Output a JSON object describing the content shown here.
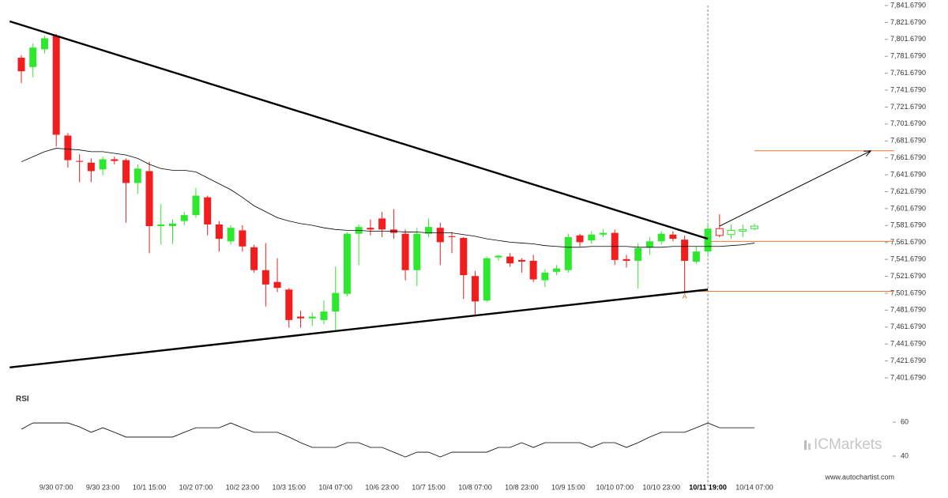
{
  "chart_data": {
    "type": "candlestick",
    "categories": [
      null,
      null,
      null,
      "9/30 07:00",
      null,
      null,
      null,
      "9/30 23:00",
      null,
      null,
      null,
      "10/1 15:00",
      null,
      null,
      null,
      "10/2 07:00",
      null,
      null,
      null,
      "10/2 23:00",
      null,
      null,
      null,
      "10/3 15:00",
      null,
      null,
      null,
      "10/4 07:00",
      null,
      null,
      null,
      "10/6 23:00",
      null,
      null,
      null,
      "10/7 15:00",
      null,
      null,
      null,
      "10/8 07:00",
      null,
      null,
      null,
      "10/8 23:00",
      null,
      null,
      null,
      "10/9 15:00",
      null,
      null,
      null,
      "10/10 07:00",
      null,
      null,
      null,
      "10/10 23:00",
      null,
      null,
      null,
      "10/11 19:00",
      null,
      null,
      null,
      "10/14 07:00"
    ],
    "open": [
      7780,
      7769,
      7790,
      7806,
      7688,
      7658,
      7656,
      7648,
      7660,
      7659,
      7632,
      7646,
      7581,
      7581,
      7587,
      7594,
      7615,
      7583,
      7563,
      7576,
      7556,
      7529,
      7515,
      7506,
      7474,
      7472,
      7470,
      7480,
      7501,
      7572,
      7579,
      7590,
      7577,
      7572,
      7529,
      7572,
      7579,
      7569,
      7567,
      7522,
      7493,
      7544,
      7545,
      7541,
      7540,
      7517,
      7527,
      7529,
      7570,
      7564,
      7571,
      7573,
      7542,
      7540,
      7556,
      7563,
      7571,
      7565,
      7539,
      7551,
      7578,
      7571,
      7575,
      7578
    ],
    "high": [
      7783,
      7797,
      7806,
      7808,
      7691,
      7666,
      7661,
      7663,
      7663,
      7661,
      7654,
      7657,
      7607,
      7589,
      7598,
      7626,
      7617,
      7587,
      7582,
      7582,
      7559,
      7561,
      7543,
      7508,
      7481,
      7479,
      7493,
      7533,
      7574,
      7583,
      7589,
      7598,
      7601,
      7577,
      7579,
      7590,
      7585,
      7574,
      7568,
      7528,
      7545,
      7547,
      7549,
      7543,
      7547,
      7530,
      7535,
      7572,
      7572,
      7575,
      7577,
      7577,
      7547,
      7561,
      7568,
      7575,
      7575,
      7570,
      7557,
      7583,
      7595,
      7583,
      7583,
      7584
    ],
    "low": [
      7750,
      7757,
      7785,
      7675,
      7650,
      7633,
      7633,
      7641,
      7654,
      7585,
      7619,
      7549,
      7559,
      7560,
      7582,
      7591,
      7570,
      7551,
      7559,
      7551,
      7526,
      7486,
      7503,
      7461,
      7461,
      7463,
      7465,
      7458,
      7498,
      7535,
      7570,
      7568,
      7566,
      7517,
      7510,
      7568,
      7535,
      7549,
      7495,
      7476,
      7491,
      7540,
      7533,
      7526,
      7515,
      7509,
      7523,
      7526,
      7557,
      7560,
      7568,
      7535,
      7532,
      7507,
      7547,
      7559,
      7563,
      7504,
      7536,
      7547,
      7568,
      7566,
      7568,
      7576
    ],
    "close": [
      7764,
      7792,
      7803,
      7689,
      7659,
      7657,
      7646,
      7660,
      7658,
      7632,
      7649,
      7581,
      7583,
      7584,
      7594,
      7617,
      7583,
      7566,
      7579,
      7557,
      7529,
      7512,
      7508,
      7470,
      7472,
      7474,
      7480,
      7502,
      7572,
      7580,
      7577,
      7577,
      7573,
      7529,
      7572,
      7580,
      7562,
      7568,
      7523,
      7492,
      7543,
      7546,
      7537,
      7539,
      7518,
      7526,
      7531,
      7568,
      7562,
      7571,
      7573,
      7541,
      7540,
      7555,
      7563,
      7572,
      7566,
      7540,
      7551,
      7578,
      7570,
      7576,
      7577,
      7581
    ],
    "up_color": "#2ee82e",
    "down_color": "#f21d1d",
    "hollow_from_index": 60,
    "moving_average": {
      "color": "#000000",
      "values": [
        7657,
        7663,
        7669,
        7673,
        7672,
        7671,
        7669,
        7669,
        7667,
        7665,
        7661,
        7654,
        7649,
        7647,
        7647,
        7645,
        7638,
        7631,
        7624,
        7615,
        7605,
        7598,
        7591,
        7587,
        7584,
        7582,
        7579,
        7577,
        7576,
        7576,
        7575,
        7575,
        7575,
        7574,
        7574,
        7573,
        7573,
        7573,
        7571,
        7569,
        7566,
        7564,
        7562,
        7561,
        7560,
        7558,
        7557,
        7556,
        7556,
        7557,
        7557,
        7557,
        7557,
        7556,
        7556,
        7556,
        7557,
        7557,
        7557,
        7557,
        7557,
        7558,
        7559,
        7561
      ]
    },
    "trendlines": [
      {
        "x": [
          -1,
          59
        ],
        "y": [
          7823,
          7566
        ]
      },
      {
        "x": [
          -1,
          59
        ],
        "y": [
          7414,
          7506
        ]
      }
    ],
    "levels": [
      {
        "value": 7670,
        "from": 63,
        "to": 75
      },
      {
        "value": 7563,
        "from": 59,
        "to": 75
      },
      {
        "value": 7504,
        "from": 57,
        "to": 75
      }
    ],
    "level_color": "#e8773a",
    "arrow": {
      "x": [
        60,
        73
      ],
      "y": [
        7581,
        7670
      ]
    },
    "annotation": {
      "text": "A",
      "x": 57,
      "y": 7504
    },
    "marker_line_index": 59,
    "ylim": [
      7401.679,
      7841.679
    ],
    "yticks": [
      {
        "value": 7401.679,
        "label": "7,401.6790"
      },
      {
        "value": 7421.679,
        "label": "7,421.6790"
      },
      {
        "value": 7441.679,
        "label": "7,441.6790"
      },
      {
        "value": 7461.679,
        "label": "7,461.6790"
      },
      {
        "value": 7481.679,
        "label": "7,481.6790"
      },
      {
        "value": 7501.679,
        "label": "7,501.6790"
      },
      {
        "value": 7521.679,
        "label": "7,521.6790"
      },
      {
        "value": 7541.679,
        "label": "7,541.6790"
      },
      {
        "value": 7561.679,
        "label": "7,561.6790"
      },
      {
        "value": 7581.679,
        "label": "7,581.6790"
      },
      {
        "value": 7601.679,
        "label": "7,601.6790"
      },
      {
        "value": 7621.679,
        "label": "7,621.6790"
      },
      {
        "value": 7641.679,
        "label": "7,641.6790"
      },
      {
        "value": 7661.679,
        "label": "7,661.6790"
      },
      {
        "value": 7681.679,
        "label": "7,681.6790"
      },
      {
        "value": 7701.679,
        "label": "7,701.6790"
      },
      {
        "value": 7721.679,
        "label": "7,721.6790"
      },
      {
        "value": 7741.679,
        "label": "7,741.6790"
      },
      {
        "value": 7761.679,
        "label": "7,761.6790"
      },
      {
        "value": 7781.679,
        "label": "7,781.6790"
      },
      {
        "value": 7801.679,
        "label": "7,801.6790"
      },
      {
        "value": 7821.679,
        "label": "7,821.6790"
      },
      {
        "value": 7841.679,
        "label": "7,841.6790"
      }
    ],
    "rsi": {
      "title": "RSI",
      "ylim": [
        35,
        70
      ],
      "yticks": [
        40,
        60
      ],
      "values": [
        55.8,
        59.5,
        59.5,
        59.5,
        59.5,
        57.2,
        54.0,
        56.7,
        54.0,
        51.2,
        51.2,
        51.2,
        51.2,
        51.2,
        54.0,
        56.7,
        56.7,
        56.7,
        59.5,
        56.7,
        54.0,
        54.0,
        54.0,
        51.2,
        47.9,
        45.1,
        45.1,
        45.1,
        47.9,
        47.9,
        45.1,
        45.1,
        42.3,
        39.5,
        42.3,
        42.3,
        39.5,
        42.3,
        42.3,
        42.3,
        42.3,
        45.1,
        45.1,
        47.9,
        45.1,
        47.9,
        47.9,
        47.9,
        47.9,
        45.1,
        47.9,
        47.9,
        45.1,
        47.9,
        51.2,
        54.0,
        54.0,
        54.0,
        56.7,
        59.5,
        56.7,
        56.7,
        56.7,
        56.7
      ]
    },
    "logo": {
      "prefix": "IC",
      "text": "Markets"
    },
    "source": "www.autochartist.com"
  }
}
